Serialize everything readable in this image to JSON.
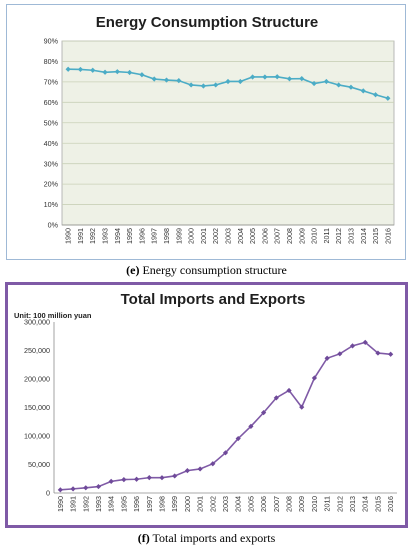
{
  "captions": {
    "e": {
      "letter": "(e)",
      "text": " Energy consumption structure"
    },
    "f": {
      "letter": "(f)",
      "text": " Total imports and exports"
    }
  },
  "chart_data": [
    {
      "type": "line",
      "title": "Energy Consumption Structure",
      "x": [
        "1990",
        "1991",
        "1992",
        "1993",
        "1994",
        "1995",
        "1996",
        "1997",
        "1998",
        "1999",
        "2000",
        "2001",
        "2002",
        "2003",
        "2004",
        "2005",
        "2006",
        "2007",
        "2008",
        "2009",
        "2010",
        "2011",
        "2012",
        "2013",
        "2014",
        "2015",
        "2016"
      ],
      "series": [
        {
          "values": [
            76.2,
            76.1,
            75.7,
            74.7,
            75.0,
            74.6,
            73.5,
            71.4,
            70.9,
            70.6,
            68.5,
            68.0,
            68.5,
            70.2,
            70.2,
            72.4,
            72.4,
            72.5,
            71.5,
            71.6,
            69.2,
            70.2,
            68.5,
            67.4,
            65.6,
            63.7,
            62.0
          ]
        }
      ],
      "ylim": [
        0,
        90
      ],
      "yticks": [
        "0%",
        "10%",
        "20%",
        "30%",
        "40%",
        "50%",
        "60%",
        "70%",
        "80%",
        "90%"
      ],
      "grid": true,
      "colors": {
        "line": "#4bacc6",
        "plot_bg": "#eef1e6",
        "grid": "#c9d1b8"
      }
    },
    {
      "type": "line",
      "title": "Total Imports and Exports",
      "unit_label": "Unit: 100 million yuan",
      "x": [
        "1990",
        "1991",
        "1992",
        "1993",
        "1994",
        "1995",
        "1996",
        "1997",
        "1998",
        "1999",
        "2000",
        "2001",
        "2002",
        "2003",
        "2004",
        "2005",
        "2006",
        "2007",
        "2008",
        "2009",
        "2010",
        "2011",
        "2012",
        "2013",
        "2014",
        "2015",
        "2016"
      ],
      "series": [
        {
          "values": [
            5560,
            7226,
            9120,
            11271,
            20382,
            23500,
            24134,
            26967,
            26850,
            29896,
            39273,
            42184,
            51378,
            70484,
            95539,
            116922,
            140974,
            166924,
            179922,
            150648,
            201722,
            236402,
            244160,
            258169,
            264242,
            245503,
            243386
          ]
        }
      ],
      "ylim": [
        0,
        300000
      ],
      "yticks": [
        "0",
        "50,000",
        "100,000",
        "150,000",
        "200,000",
        "250,000",
        "300,000"
      ],
      "grid": false,
      "colors": {
        "line": "#7f5aa6",
        "marker": "#6f4a9a"
      }
    }
  ]
}
